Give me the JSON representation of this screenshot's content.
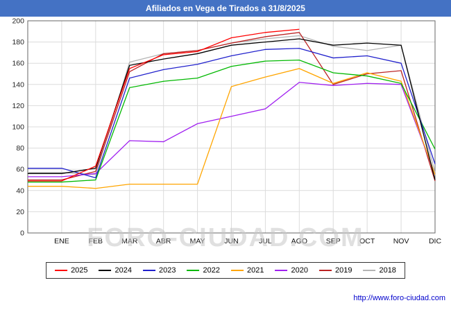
{
  "title": "Afiliados en Vega de Tirados a 31/8/2025",
  "watermark": "FORO-CIUDAD.COM",
  "footer_url": "http://www.foro-ciudad.com",
  "colors": {
    "title_bar_bg": "#4472c4",
    "grid": "#dcdcdc",
    "plot_border": "#666666",
    "watermark": "#c8c8c8",
    "link": "#0000cc"
  },
  "chart_data": {
    "type": "line",
    "title": "Afiliados en Vega de Tirados a 31/8/2025",
    "xlabel": "",
    "ylabel": "",
    "ylim": [
      0,
      200
    ],
    "ytick_step": 20,
    "grid": true,
    "legend_position": "bottom",
    "categories": [
      "ENE",
      "FEB",
      "MAR",
      "ABR",
      "MAY",
      "JUN",
      "JUL",
      "AGO",
      "SEP",
      "OCT",
      "NOV",
      "DIC"
    ],
    "series": [
      {
        "name": "2025",
        "color": "#ff0000",
        "values": [
          49,
          63,
          155,
          168,
          171,
          184,
          189,
          192,
          null,
          null,
          null,
          null
        ]
      },
      {
        "name": "2024",
        "color": "#000000",
        "values": [
          56,
          61,
          158,
          164,
          169,
          177,
          180,
          183,
          177,
          179,
          177,
          50
        ]
      },
      {
        "name": "2023",
        "color": "#2020cc",
        "values": [
          61,
          52,
          146,
          154,
          159,
          167,
          173,
          174,
          165,
          167,
          160,
          65
        ]
      },
      {
        "name": "2022",
        "color": "#00b800",
        "values": [
          48,
          50,
          137,
          143,
          146,
          157,
          162,
          163,
          151,
          148,
          141,
          79
        ]
      },
      {
        "name": "2021",
        "color": "#ffa500",
        "values": [
          44,
          42,
          46,
          46,
          46,
          138,
          147,
          155,
          141,
          151,
          143,
          55
        ]
      },
      {
        "name": "2020",
        "color": "#a020f0",
        "values": [
          53,
          56,
          87,
          86,
          103,
          110,
          117,
          142,
          139,
          141,
          140,
          55
        ]
      },
      {
        "name": "2019",
        "color": "#bb2222",
        "values": [
          50,
          58,
          152,
          169,
          172,
          179,
          185,
          189,
          140,
          150,
          153,
          49
        ]
      },
      {
        "name": "2018",
        "color": "#b4b4b4",
        "values": [
          57,
          55,
          161,
          169,
          172,
          179,
          183,
          186,
          176,
          172,
          177,
          57
        ]
      }
    ]
  }
}
